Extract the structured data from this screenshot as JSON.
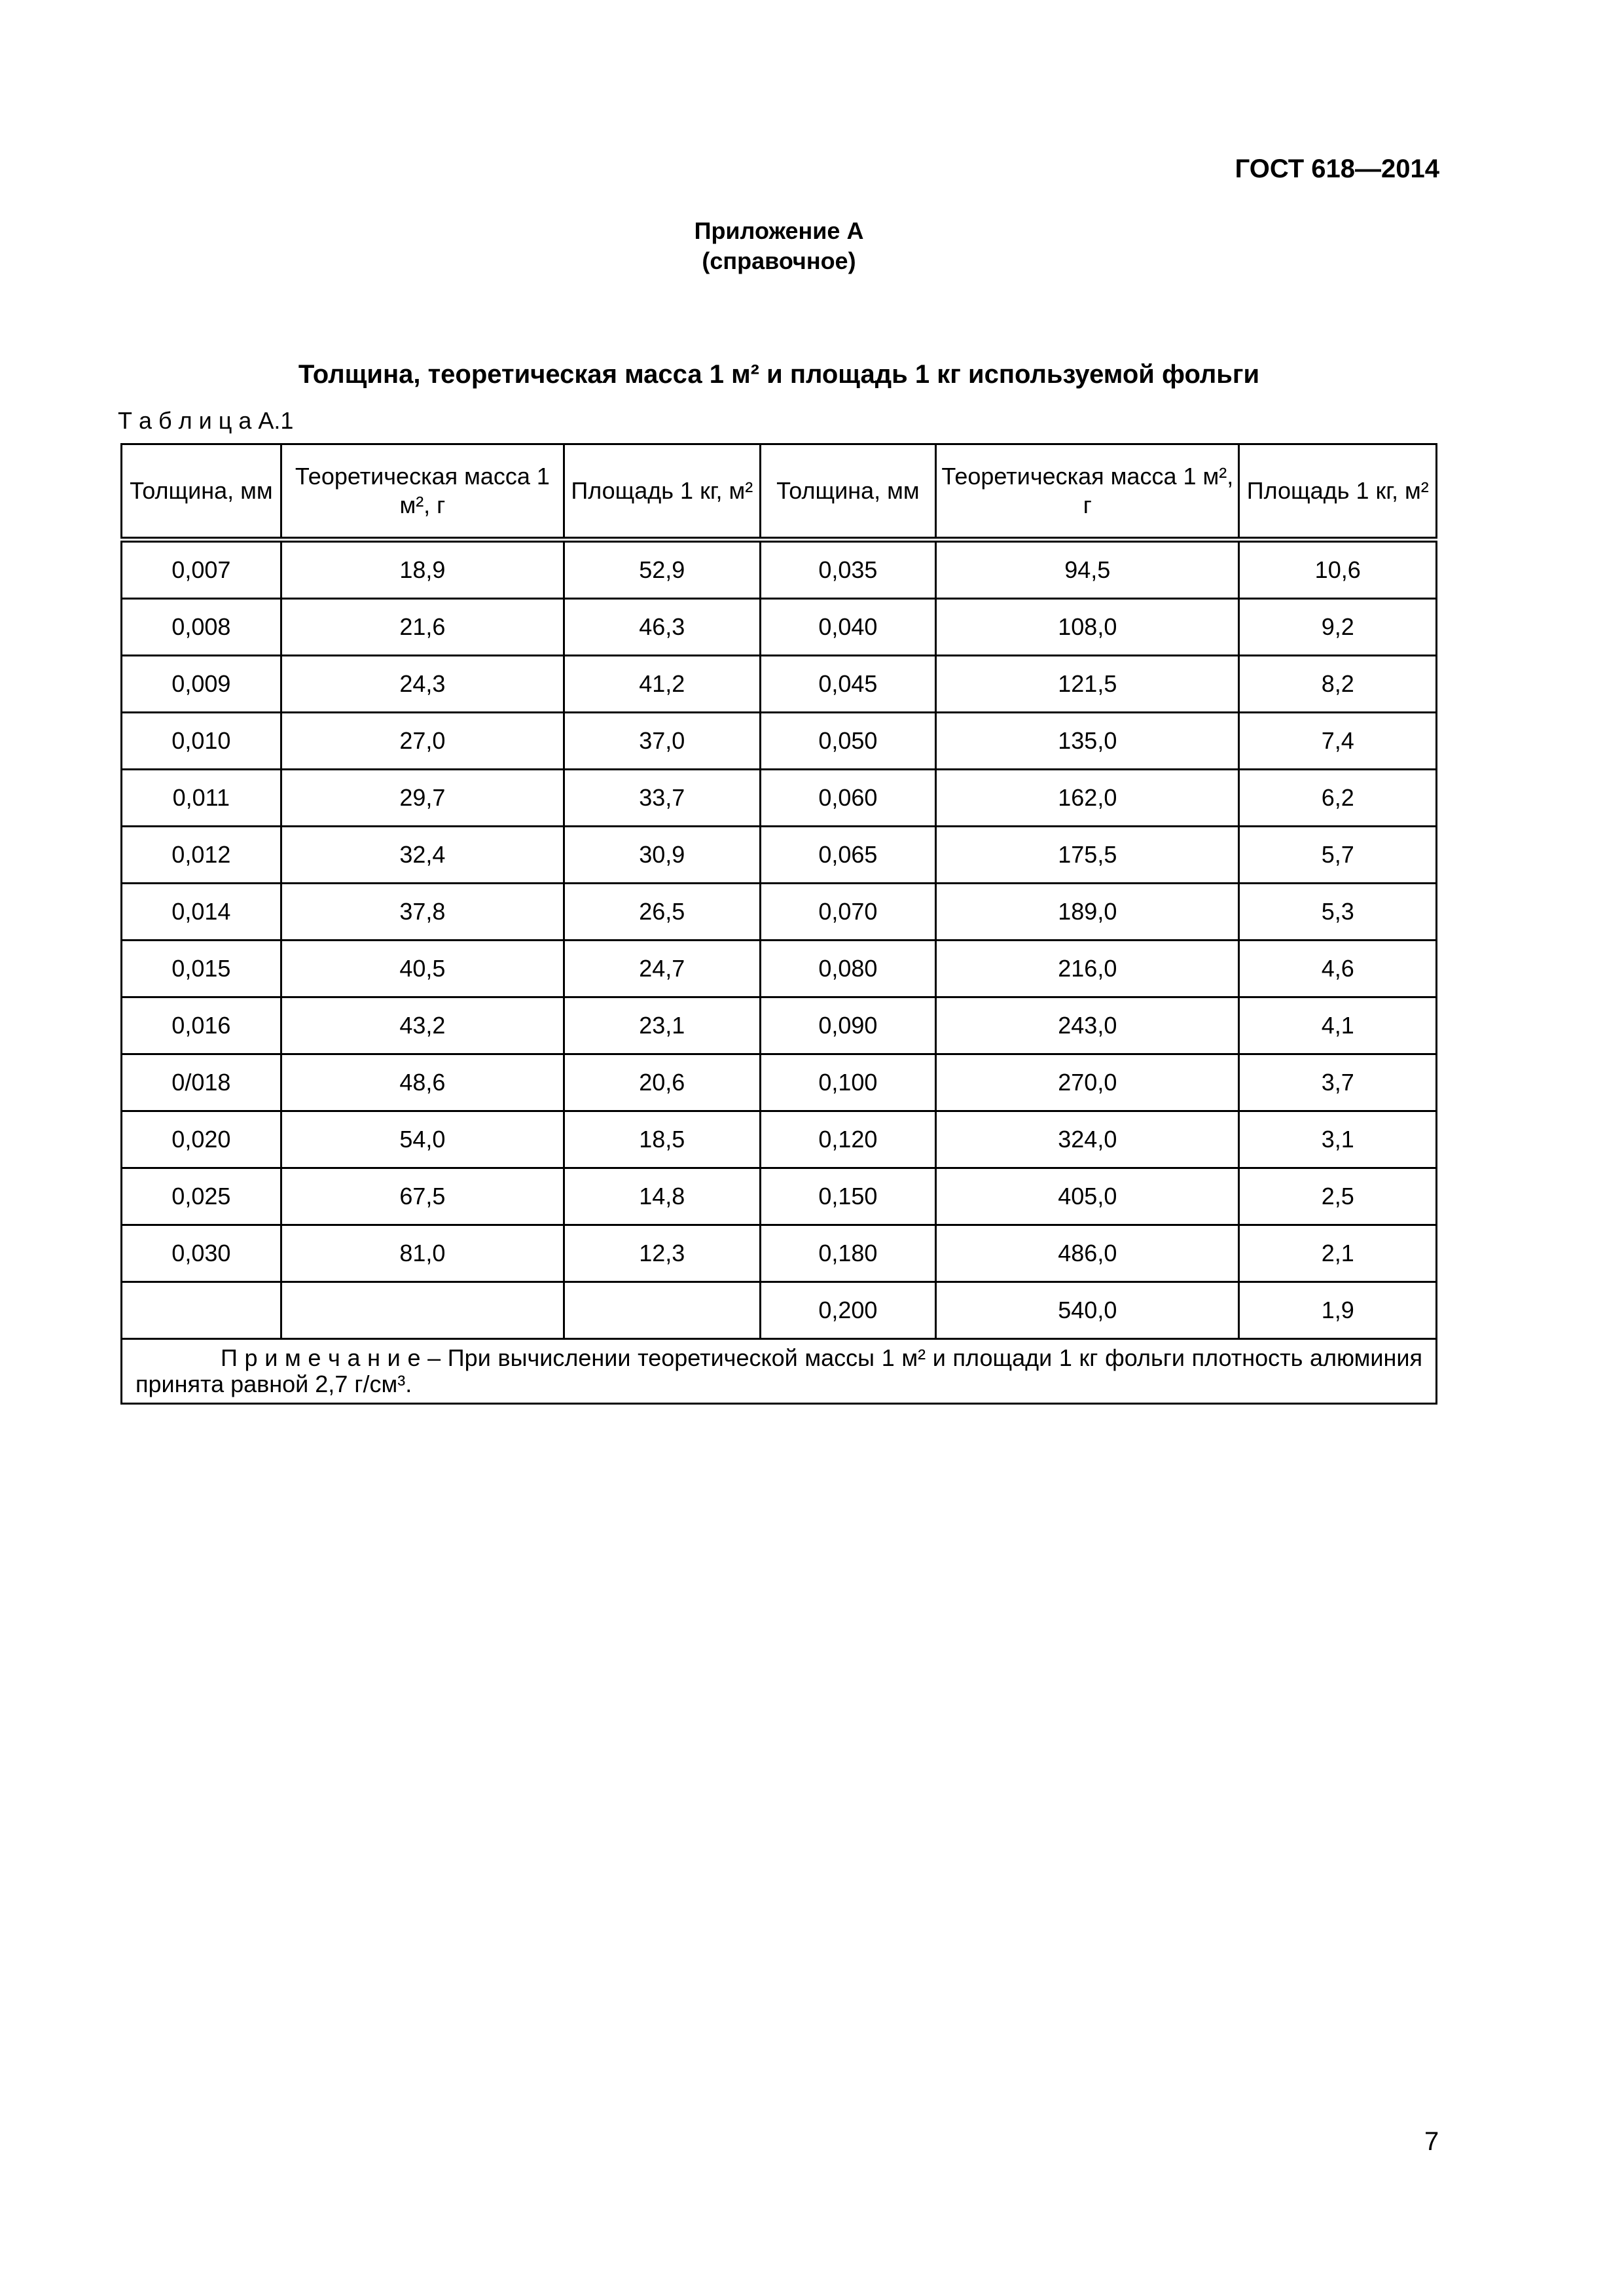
{
  "header": {
    "doc_code": "ГОСТ 618—2014"
  },
  "appendix": {
    "title": "Приложение А",
    "subtitle": "(справочное)"
  },
  "section_title": "Толщина, теоретическая масса 1 м² и площадь 1 кг используемой фольги",
  "table": {
    "label": "Т а б л и ц а",
    "number": "А.1",
    "columns": [
      "Толщина, мм",
      "Теоретическая масса 1 м², г",
      "Площадь 1 кг, м²",
      "Толщина, мм",
      "Теоретическая масса 1 м², г",
      "Площадь 1 кг, м²"
    ],
    "rows": [
      [
        "0,007",
        "18,9",
        "52,9",
        "0,035",
        "94,5",
        "10,6"
      ],
      [
        "0,008",
        "21,6",
        "46,3",
        "0,040",
        "108,0",
        "9,2"
      ],
      [
        "0,009",
        "24,3",
        "41,2",
        "0,045",
        "121,5",
        "8,2"
      ],
      [
        "0,010",
        "27,0",
        "37,0",
        "0,050",
        "135,0",
        "7,4"
      ],
      [
        "0,011",
        "29,7",
        "33,7",
        "0,060",
        "162,0",
        "6,2"
      ],
      [
        "0,012",
        "32,4",
        "30,9",
        "0,065",
        "175,5",
        "5,7"
      ],
      [
        "0,014",
        "37,8",
        "26,5",
        "0,070",
        "189,0",
        "5,3"
      ],
      [
        "0,015",
        "40,5",
        "24,7",
        "0,080",
        "216,0",
        "4,6"
      ],
      [
        "0,016",
        "43,2",
        "23,1",
        "0,090",
        "243,0",
        "4,1"
      ],
      [
        "0/018",
        "48,6",
        "20,6",
        "0,100",
        "270,0",
        "3,7"
      ],
      [
        "0,020",
        "54,0",
        "18,5",
        "0,120",
        "324,0",
        "3,1"
      ],
      [
        "0,025",
        "67,5",
        "14,8",
        "0,150",
        "405,0",
        "2,5"
      ],
      [
        "0,030",
        "81,0",
        "12,3",
        "0,180",
        "486,0",
        "2,1"
      ],
      [
        "",
        "",
        "",
        "0,200",
        "540,0",
        "1,9"
      ]
    ],
    "note_label": "П р и м е ч а н и е",
    "note_text": " – При вычислении теоретической массы 1 м² и площади 1 кг фольги плотность алюминия принята равной 2,7 г/см³."
  },
  "page_number": "7"
}
